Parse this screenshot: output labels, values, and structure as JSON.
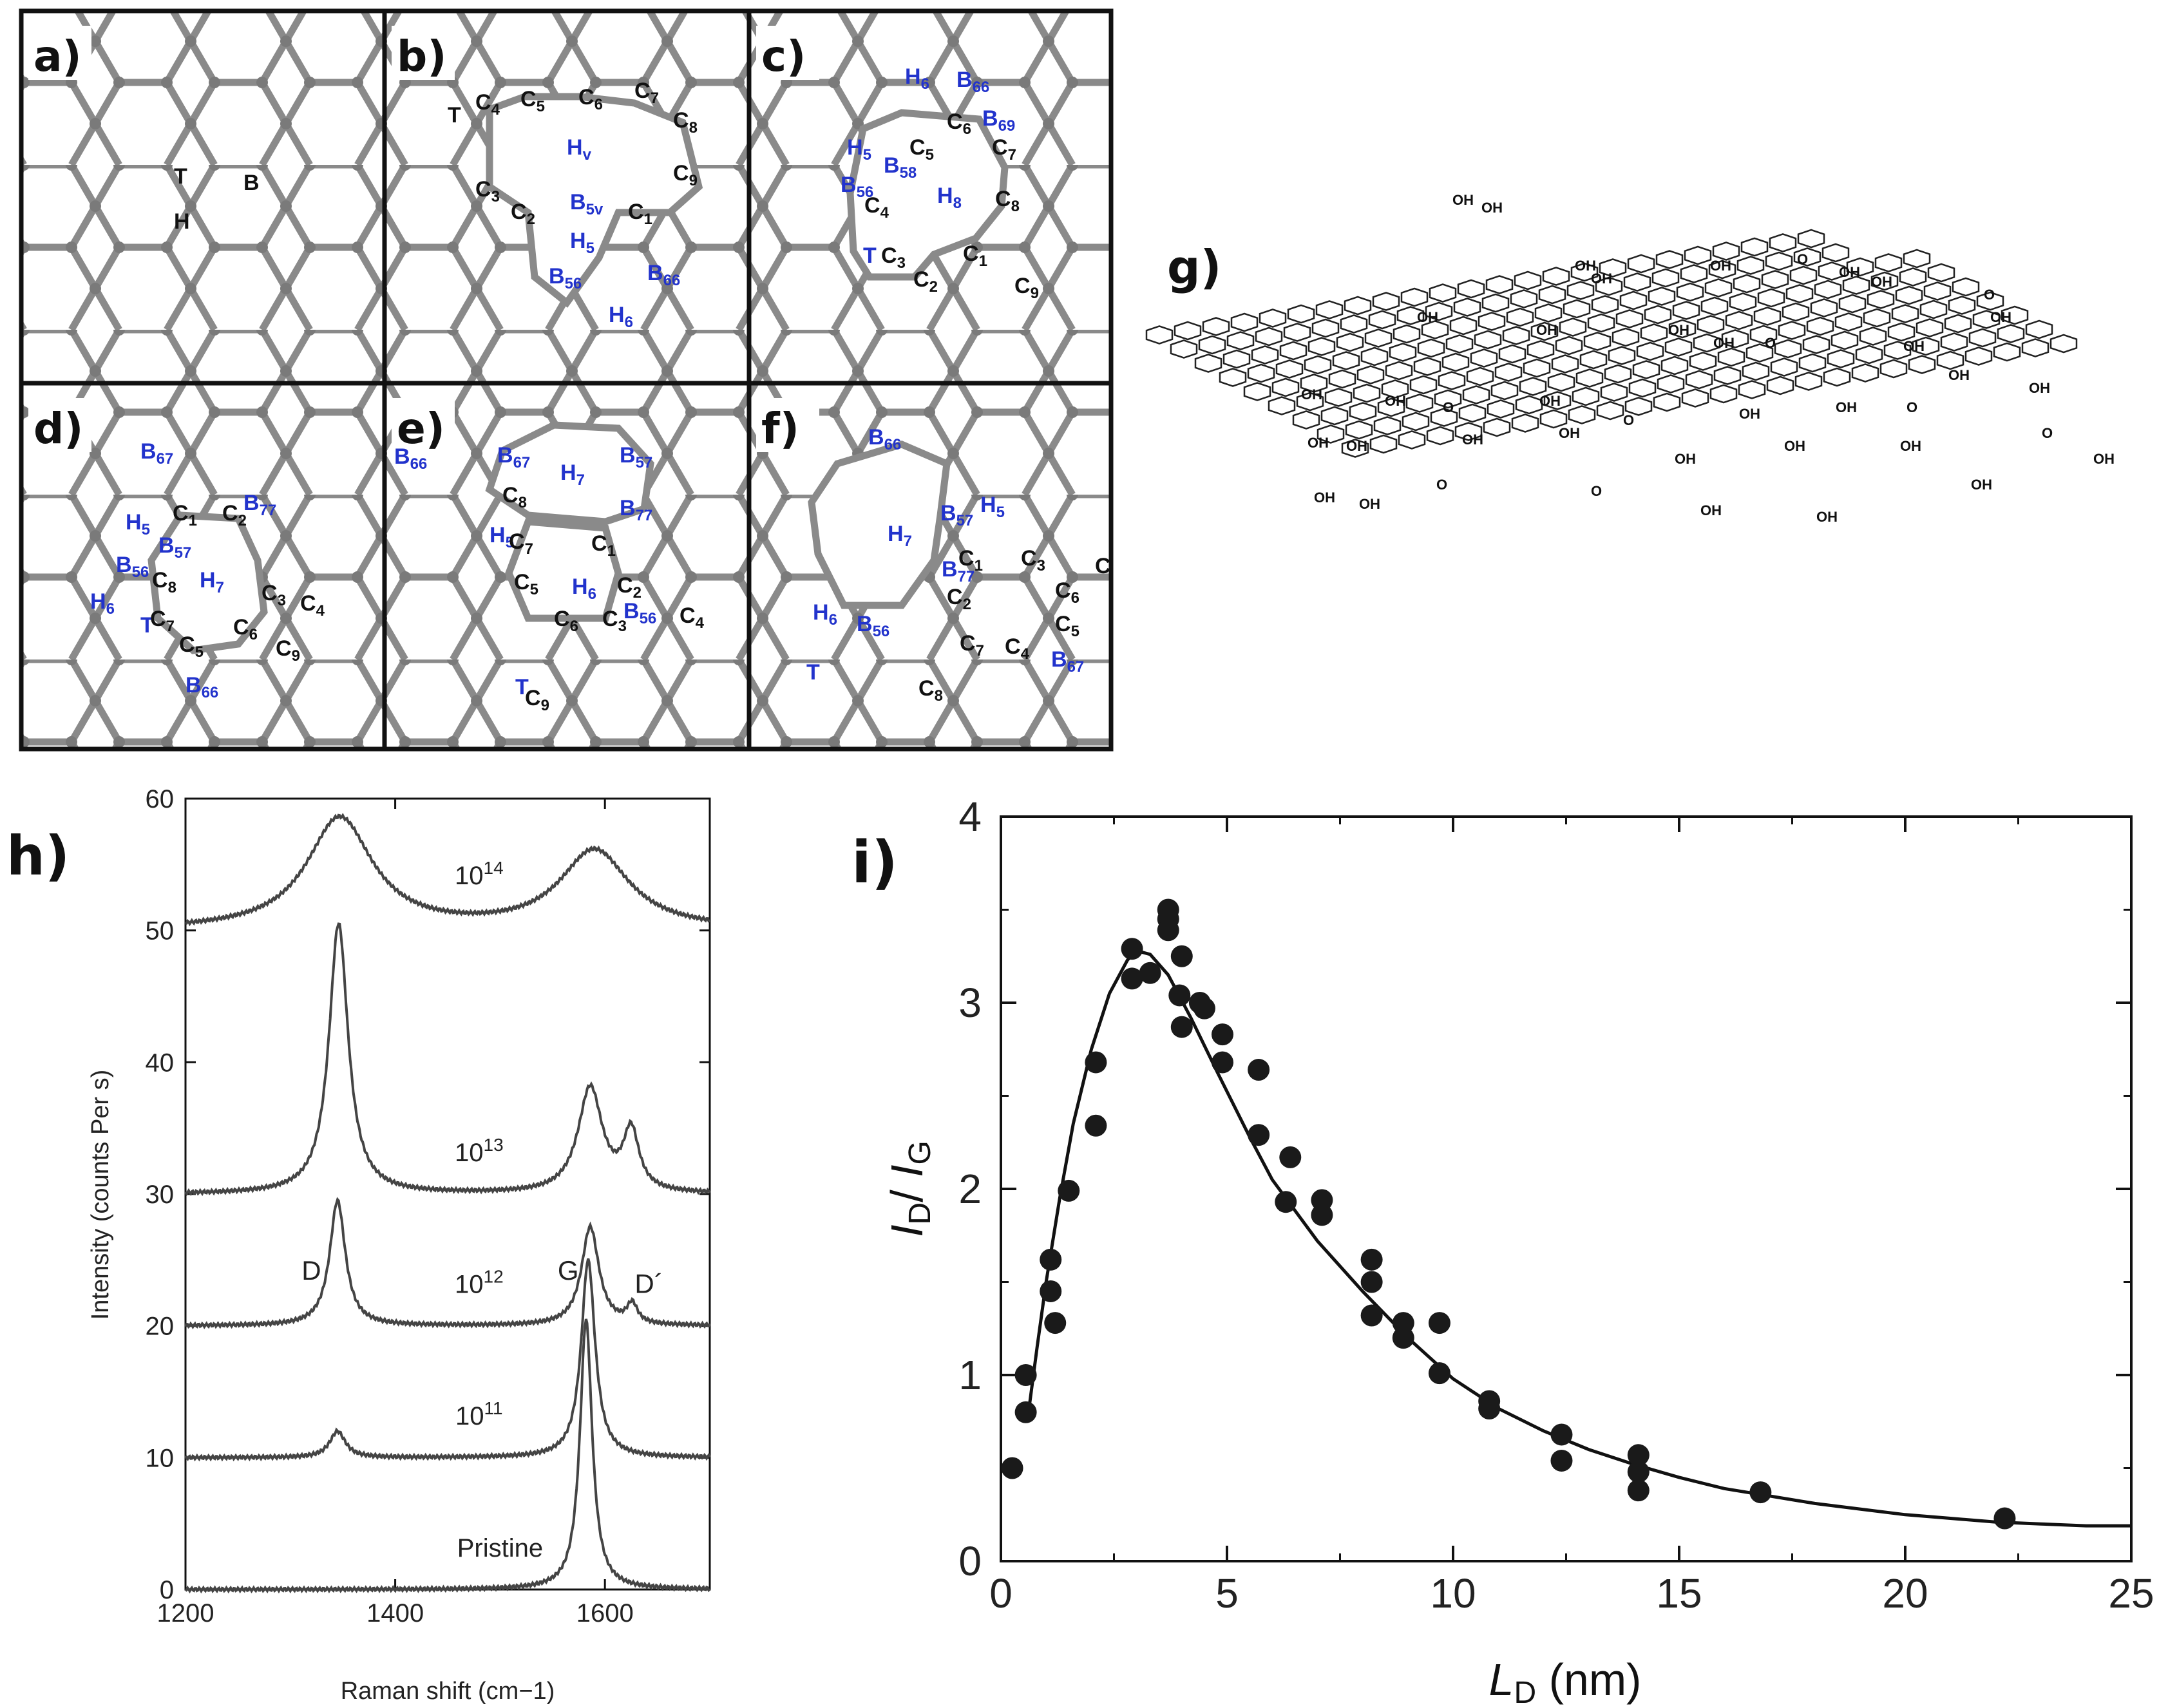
{
  "panels": {
    "a": {
      "letter": "a)",
      "labels": [
        {
          "text": "T",
          "color": "black"
        },
        {
          "text": "H",
          "color": "black"
        },
        {
          "text": "B",
          "color": "black"
        }
      ]
    },
    "b": {
      "letter": "b)",
      "labels": [
        {
          "text": "T",
          "color": "black"
        },
        {
          "text": "C4",
          "color": "black"
        },
        {
          "text": "C5",
          "color": "black"
        },
        {
          "text": "C6",
          "color": "black"
        },
        {
          "text": "C7",
          "color": "black"
        },
        {
          "text": "C8",
          "color": "black"
        },
        {
          "text": "C9",
          "color": "black"
        },
        {
          "text": "C3",
          "color": "black"
        },
        {
          "text": "C2",
          "color": "black"
        },
        {
          "text": "C1",
          "color": "black"
        },
        {
          "text": "Hv",
          "color": "blue"
        },
        {
          "text": "B5v",
          "color": "blue"
        },
        {
          "text": "H5",
          "color": "blue"
        },
        {
          "text": "B56",
          "color": "blue"
        },
        {
          "text": "B66",
          "color": "blue"
        },
        {
          "text": "H6",
          "color": "blue"
        }
      ]
    },
    "c": {
      "letter": "c)",
      "labels": [
        {
          "text": "H6",
          "color": "blue"
        },
        {
          "text": "B66",
          "color": "blue"
        },
        {
          "text": "B69",
          "color": "blue"
        },
        {
          "text": "H5",
          "color": "blue"
        },
        {
          "text": "B58",
          "color": "blue"
        },
        {
          "text": "B56",
          "color": "blue"
        },
        {
          "text": "H8",
          "color": "blue"
        },
        {
          "text": "T",
          "color": "blue"
        },
        {
          "text": "C6",
          "color": "black"
        },
        {
          "text": "C7",
          "color": "black"
        },
        {
          "text": "C5",
          "color": "black"
        },
        {
          "text": "C4",
          "color": "black"
        },
        {
          "text": "C8",
          "color": "black"
        },
        {
          "text": "C3",
          "color": "black"
        },
        {
          "text": "C1",
          "color": "black"
        },
        {
          "text": "C2",
          "color": "black"
        },
        {
          "text": "C9",
          "color": "black"
        }
      ]
    },
    "d": {
      "letter": "d)",
      "labels": [
        {
          "text": "B67",
          "color": "blue"
        },
        {
          "text": "B77",
          "color": "blue"
        },
        {
          "text": "H5",
          "color": "blue"
        },
        {
          "text": "B57",
          "color": "blue"
        },
        {
          "text": "B56",
          "color": "blue"
        },
        {
          "text": "H7",
          "color": "blue"
        },
        {
          "text": "H6",
          "color": "blue"
        },
        {
          "text": "T",
          "color": "blue"
        },
        {
          "text": "B66",
          "color": "blue"
        },
        {
          "text": "C1",
          "color": "black"
        },
        {
          "text": "C2",
          "color": "black"
        },
        {
          "text": "C8",
          "color": "black"
        },
        {
          "text": "C3",
          "color": "black"
        },
        {
          "text": "C4",
          "color": "black"
        },
        {
          "text": "C7",
          "color": "black"
        },
        {
          "text": "C6",
          "color": "black"
        },
        {
          "text": "C5",
          "color": "black"
        },
        {
          "text": "C9",
          "color": "black"
        }
      ]
    },
    "e": {
      "letter": "e)",
      "labels": [
        {
          "text": "B66",
          "color": "blue"
        },
        {
          "text": "B67",
          "color": "blue"
        },
        {
          "text": "B57",
          "color": "blue"
        },
        {
          "text": "H7",
          "color": "blue"
        },
        {
          "text": "B77",
          "color": "blue"
        },
        {
          "text": "H5",
          "color": "blue"
        },
        {
          "text": "H6",
          "color": "blue"
        },
        {
          "text": "B56",
          "color": "blue"
        },
        {
          "text": "T",
          "color": "blue"
        },
        {
          "text": "C8",
          "color": "black"
        },
        {
          "text": "C7",
          "color": "black"
        },
        {
          "text": "C1",
          "color": "black"
        },
        {
          "text": "C5",
          "color": "black"
        },
        {
          "text": "C2",
          "color": "black"
        },
        {
          "text": "C4",
          "color": "black"
        },
        {
          "text": "C6",
          "color": "black"
        },
        {
          "text": "C3",
          "color": "black"
        },
        {
          "text": "C9",
          "color": "black"
        }
      ]
    },
    "f": {
      "letter": "f)",
      "labels": [
        {
          "text": "B66",
          "color": "blue"
        },
        {
          "text": "H7",
          "color": "blue"
        },
        {
          "text": "B57",
          "color": "blue"
        },
        {
          "text": "H5",
          "color": "blue"
        },
        {
          "text": "B77",
          "color": "blue"
        },
        {
          "text": "H6",
          "color": "blue"
        },
        {
          "text": "B56",
          "color": "blue"
        },
        {
          "text": "T",
          "color": "blue"
        },
        {
          "text": "B67",
          "color": "blue"
        },
        {
          "text": "C1",
          "color": "black"
        },
        {
          "text": "C3",
          "color": "black"
        },
        {
          "text": "C6",
          "color": "black"
        },
        {
          "text": "C2",
          "color": "black"
        },
        {
          "text": "C5",
          "color": "black"
        },
        {
          "text": "C7",
          "color": "black"
        },
        {
          "text": "C4",
          "color": "black"
        },
        {
          "text": "C8",
          "color": "black"
        },
        {
          "text": "C",
          "color": "black"
        }
      ]
    },
    "g": {
      "letter": "g)",
      "group_labels": [
        "OH",
        "O"
      ]
    }
  },
  "colors": {
    "lattice": "#8a8a8a",
    "blue_label": "#2233cc",
    "ink": "#111111"
  },
  "chart_data": [
    {
      "id": "h",
      "panel_letter": "h)",
      "type": "line",
      "xlabel": "Raman shift (cm−1)",
      "ylabel": "Intensity (counts Per s)",
      "xlim": [
        1200,
        1700
      ],
      "ylim": [
        0,
        60
      ],
      "xticks": [
        1200,
        1400,
        1600
      ],
      "yticks": [
        0,
        10,
        20,
        30,
        40,
        50,
        60
      ],
      "peak_labels": [
        {
          "text": "D",
          "x": 1320,
          "y": 23.5
        },
        {
          "text": "G",
          "x": 1565,
          "y": 23.5
        },
        {
          "text": "D´",
          "x": 1642,
          "y": 22.5
        }
      ],
      "series": [
        {
          "name": "Pristine",
          "label_base": "Pristine",
          "label_exp": "",
          "label_at": [
            1500,
            2.5
          ],
          "baseline": 0,
          "peaks": [
            {
              "x": 1582,
              "height": 20.5,
              "width": 7
            }
          ]
        },
        {
          "name": "10^11",
          "label_base": "10",
          "label_exp": "11",
          "label_at": [
            1480,
            12.5
          ],
          "baseline": 10,
          "peaks": [
            {
              "x": 1345,
              "height": 2,
              "width": 9
            },
            {
              "x": 1584,
              "height": 15,
              "width": 8
            }
          ]
        },
        {
          "name": "10^12",
          "label_base": "10",
          "label_exp": "12",
          "label_at": [
            1480,
            22.5
          ],
          "baseline": 20,
          "peaks": [
            {
              "x": 1345,
              "height": 9.5,
              "width": 9
            },
            {
              "x": 1586,
              "height": 7.5,
              "width": 10
            },
            {
              "x": 1626,
              "height": 1.5,
              "width": 6
            }
          ]
        },
        {
          "name": "10^13",
          "label_base": "10",
          "label_exp": "13",
          "label_at": [
            1480,
            32.5
          ],
          "baseline": 30,
          "peaks": [
            {
              "x": 1346,
              "height": 20.5,
              "width": 11
            },
            {
              "x": 1586,
              "height": 8,
              "width": 14
            },
            {
              "x": 1625,
              "height": 4.5,
              "width": 9
            }
          ]
        },
        {
          "name": "10^14",
          "label_base": "10",
          "label_exp": "14",
          "label_at": [
            1480,
            53.5
          ],
          "baseline": 50,
          "peaks": [
            {
              "x": 1347,
              "height": 8.5,
              "width": 38
            },
            {
              "x": 1590,
              "height": 6,
              "width": 40
            }
          ]
        }
      ]
    },
    {
      "id": "i",
      "panel_letter": "i)",
      "type": "scatter",
      "xlabel_base": "L",
      "xlabel_sub": "D",
      "xlabel_unit": " (nm)",
      "ylabel_parts": [
        "I",
        "D",
        "/ ",
        "I",
        "G"
      ],
      "xlim": [
        0,
        25
      ],
      "ylim": [
        0,
        4
      ],
      "xticks": [
        0,
        5,
        10,
        15,
        20,
        25
      ],
      "yticks": [
        0,
        1,
        2,
        3,
        4
      ],
      "points": [
        [
          0.25,
          0.5
        ],
        [
          0.55,
          0.8
        ],
        [
          0.55,
          1.0
        ],
        [
          1.1,
          1.62
        ],
        [
          1.1,
          1.45
        ],
        [
          1.2,
          1.28
        ],
        [
          1.5,
          1.99
        ],
        [
          2.1,
          2.68
        ],
        [
          2.1,
          2.34
        ],
        [
          2.9,
          3.29
        ],
        [
          2.9,
          3.13
        ],
        [
          3.3,
          3.16
        ],
        [
          3.7,
          3.5
        ],
        [
          3.7,
          3.45
        ],
        [
          3.7,
          3.39
        ],
        [
          4.0,
          3.25
        ],
        [
          3.95,
          3.04
        ],
        [
          4.0,
          2.87
        ],
        [
          4.4,
          3.0
        ],
        [
          4.5,
          2.97
        ],
        [
          4.9,
          2.83
        ],
        [
          4.9,
          2.68
        ],
        [
          5.7,
          2.64
        ],
        [
          5.7,
          2.29
        ],
        [
          6.4,
          2.17
        ],
        [
          6.3,
          1.93
        ],
        [
          7.1,
          1.94
        ],
        [
          7.1,
          1.86
        ],
        [
          8.2,
          1.62
        ],
        [
          8.2,
          1.5
        ],
        [
          8.2,
          1.32
        ],
        [
          8.9,
          1.28
        ],
        [
          8.9,
          1.2
        ],
        [
          9.7,
          1.28
        ],
        [
          9.7,
          1.01
        ],
        [
          10.8,
          0.86
        ],
        [
          10.8,
          0.82
        ],
        [
          12.4,
          0.68
        ],
        [
          12.4,
          0.54
        ],
        [
          14.1,
          0.57
        ],
        [
          14.1,
          0.48
        ],
        [
          14.1,
          0.38
        ],
        [
          16.8,
          0.37
        ],
        [
          22.2,
          0.23
        ]
      ],
      "fit_curve": [
        [
          0.6,
          0.78
        ],
        [
          0.8,
          1.15
        ],
        [
          1.0,
          1.5
        ],
        [
          1.3,
          1.95
        ],
        [
          1.6,
          2.35
        ],
        [
          2.0,
          2.75
        ],
        [
          2.4,
          3.05
        ],
        [
          2.8,
          3.23
        ],
        [
          3.0,
          3.28
        ],
        [
          3.3,
          3.26
        ],
        [
          3.7,
          3.15
        ],
        [
          4.2,
          2.92
        ],
        [
          4.8,
          2.62
        ],
        [
          5.5,
          2.28
        ],
        [
          6.0,
          2.05
        ],
        [
          7.0,
          1.72
        ],
        [
          8.0,
          1.45
        ],
        [
          9.0,
          1.2
        ],
        [
          10.0,
          0.98
        ],
        [
          11.0,
          0.82
        ],
        [
          12.0,
          0.7
        ],
        [
          13.0,
          0.6
        ],
        [
          14.0,
          0.52
        ],
        [
          15.0,
          0.45
        ],
        [
          16.0,
          0.39
        ],
        [
          17.0,
          0.35
        ],
        [
          18.0,
          0.31
        ],
        [
          19.0,
          0.28
        ],
        [
          20.0,
          0.25
        ],
        [
          21.0,
          0.23
        ],
        [
          22.0,
          0.21
        ],
        [
          23.0,
          0.2
        ],
        [
          24.0,
          0.19
        ],
        [
          25.0,
          0.19
        ]
      ]
    }
  ]
}
